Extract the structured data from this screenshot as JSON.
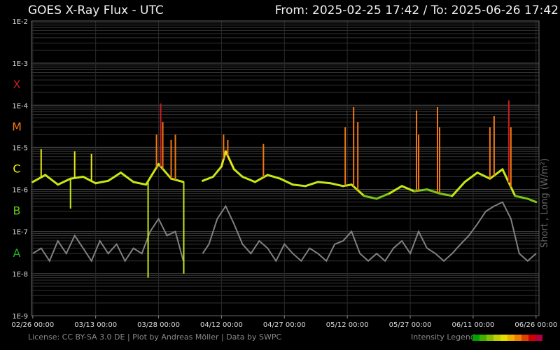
{
  "header": {
    "title": "GOES X-Ray Flux - UTC",
    "range": "From: 2025-02-25 17:42  /  To: 2025-06-26 17:42"
  },
  "chart_data": {
    "type": "line",
    "title": "GOES X-Ray Flux - UTC",
    "ylabel": "Short , Long (W/m²)",
    "yscale": "log",
    "ylim": [
      "1E-9",
      "1E-2"
    ],
    "y_ticks": [
      "1E-2",
      "1E-3",
      "1E-4",
      "1E-5",
      "1E-6",
      "1E-7",
      "1E-8",
      "1E-9"
    ],
    "x_ticks": [
      "02/26 00:00",
      "03/13 00:00",
      "03/28 00:00",
      "04/12 00:00",
      "04/27 00:00",
      "05/12 00:00",
      "05/27 00:00",
      "06/11 00:00",
      "06/26 00:00"
    ],
    "x_tick_days": [
      0,
      15,
      30,
      45,
      60,
      75,
      90,
      105,
      120
    ],
    "x_range_days": [
      -0.3,
      120.7
    ],
    "flare_classes": [
      {
        "label": "X",
        "color": "#c81e1e"
      },
      {
        "label": "M",
        "color": "#f07814"
      },
      {
        "label": "C",
        "color": "#f0f014"
      },
      {
        "label": "B",
        "color": "#64c814"
      },
      {
        "label": "A",
        "color": "#1eb41e"
      }
    ],
    "grid": true,
    "series": [
      {
        "name": "Long",
        "color_mode": "intensity",
        "segments": [
          {
            "x": [
              0,
              3,
              6,
              9,
              12,
              15,
              18,
              21,
              24,
              27,
              30,
              33,
              35.9
            ],
            "y": [
              1.5e-06,
              2.2e-06,
              1.3e-06,
              1.8e-06,
              2e-06,
              1.4e-06,
              1.6e-06,
              2.5e-06,
              1.5e-06,
              1.3e-06,
              4e-06,
              1.8e-06,
              1.5e-06
            ]
          },
          {
            "x": [
              40.5,
              43,
              45,
              46,
              48,
              50,
              53,
              56,
              59,
              62,
              65,
              68,
              71,
              74,
              76,
              79,
              82,
              85,
              88,
              91,
              94,
              97,
              100,
              103,
              106,
              109,
              112,
              115,
              118,
              120
            ],
            "y": [
              1.6e-06,
              2e-06,
              3.5e-06,
              8e-06,
              3e-06,
              2e-06,
              1.5e-06,
              2.2e-06,
              1.8e-06,
              1.3e-06,
              1.2e-06,
              1.5e-06,
              1.4e-06,
              1.2e-06,
              1.3e-06,
              7e-07,
              6e-07,
              8e-07,
              1.2e-06,
              9e-07,
              1e-06,
              8e-07,
              7e-07,
              1.5e-06,
              2.5e-06,
              1.8e-06,
              3e-06,
              7e-07,
              6e-07,
              5e-07
            ]
          }
        ],
        "spikes": [
          {
            "x": 2,
            "y": 9e-06
          },
          {
            "x": 10,
            "y": 8e-06
          },
          {
            "x": 14,
            "y": 7e-06
          },
          {
            "x": 29.5,
            "y": 2e-05
          },
          {
            "x": 30.5,
            "y": 0.00011
          },
          {
            "x": 31,
            "y": 4e-05
          },
          {
            "x": 33,
            "y": 1.5e-05
          },
          {
            "x": 34,
            "y": 2e-05
          },
          {
            "x": 45.5,
            "y": 2e-05
          },
          {
            "x": 46.5,
            "y": 1.5e-05
          },
          {
            "x": 55,
            "y": 1.2e-05
          },
          {
            "x": 74.5,
            "y": 3e-05
          },
          {
            "x": 76.5,
            "y": 9e-05
          },
          {
            "x": 77.5,
            "y": 4e-05
          },
          {
            "x": 91.5,
            "y": 7.5e-05
          },
          {
            "x": 92,
            "y": 2e-05
          },
          {
            "x": 96.5,
            "y": 9e-05
          },
          {
            "x": 97,
            "y": 3e-05
          },
          {
            "x": 109,
            "y": 3e-05
          },
          {
            "x": 110,
            "y": 5.5e-05
          },
          {
            "x": 113.5,
            "y": 0.00013
          },
          {
            "x": 114,
            "y": 3e-05
          }
        ],
        "dips": [
          {
            "x": 9,
            "y": 3.5e-07
          },
          {
            "x": 27.5,
            "y": 8e-09
          },
          {
            "x": 36,
            "y": 1e-08
          }
        ]
      },
      {
        "name": "Short",
        "color": "#808080",
        "segments": [
          {
            "x": [
              0,
              2,
              4,
              6,
              8,
              10,
              12,
              14,
              16,
              18,
              20,
              22,
              24,
              26,
              28,
              30,
              32,
              34,
              35.9
            ],
            "y": [
              3e-08,
              4e-08,
              2e-08,
              6e-08,
              3e-08,
              8e-08,
              4e-08,
              2e-08,
              6e-08,
              3e-08,
              5e-08,
              2e-08,
              4e-08,
              3e-08,
              1e-07,
              2e-07,
              8e-08,
              1e-07,
              2e-08
            ]
          },
          {
            "x": [
              40.5,
              42,
              44,
              46,
              48,
              50,
              52,
              54,
              56,
              58,
              60,
              62,
              64,
              66,
              68,
              70,
              72,
              74,
              76,
              78,
              80,
              82,
              84,
              86,
              88,
              90,
              92,
              94,
              96,
              98,
              100,
              102,
              104,
              106,
              108,
              110,
              112,
              114,
              116,
              118,
              120
            ],
            "y": [
              3e-08,
              5e-08,
              2e-07,
              4e-07,
              1.5e-07,
              5e-08,
              3e-08,
              6e-08,
              4e-08,
              2e-08,
              5e-08,
              3e-08,
              2e-08,
              4e-08,
              3e-08,
              2e-08,
              5e-08,
              6e-08,
              1e-07,
              3e-08,
              2e-08,
              3e-08,
              2e-08,
              4e-08,
              6e-08,
              3e-08,
              1e-07,
              4e-08,
              3e-08,
              2e-08,
              3e-08,
              5e-08,
              8e-08,
              1.5e-07,
              3e-07,
              4e-07,
              5e-07,
              2e-07,
              3e-08,
              2e-08,
              3e-08
            ]
          }
        ]
      }
    ]
  },
  "footer": {
    "credits": "License: CC BY-SA 3.0 DE | Plot by Andreas Möller | Data by SWPC",
    "legend_label": "Intensity Legend",
    "legend_colors": [
      "#00a000",
      "#40b000",
      "#80c000",
      "#c0d000",
      "#e0e000",
      "#f0b000",
      "#f08000",
      "#e04000",
      "#d00000",
      "#b00040"
    ]
  }
}
